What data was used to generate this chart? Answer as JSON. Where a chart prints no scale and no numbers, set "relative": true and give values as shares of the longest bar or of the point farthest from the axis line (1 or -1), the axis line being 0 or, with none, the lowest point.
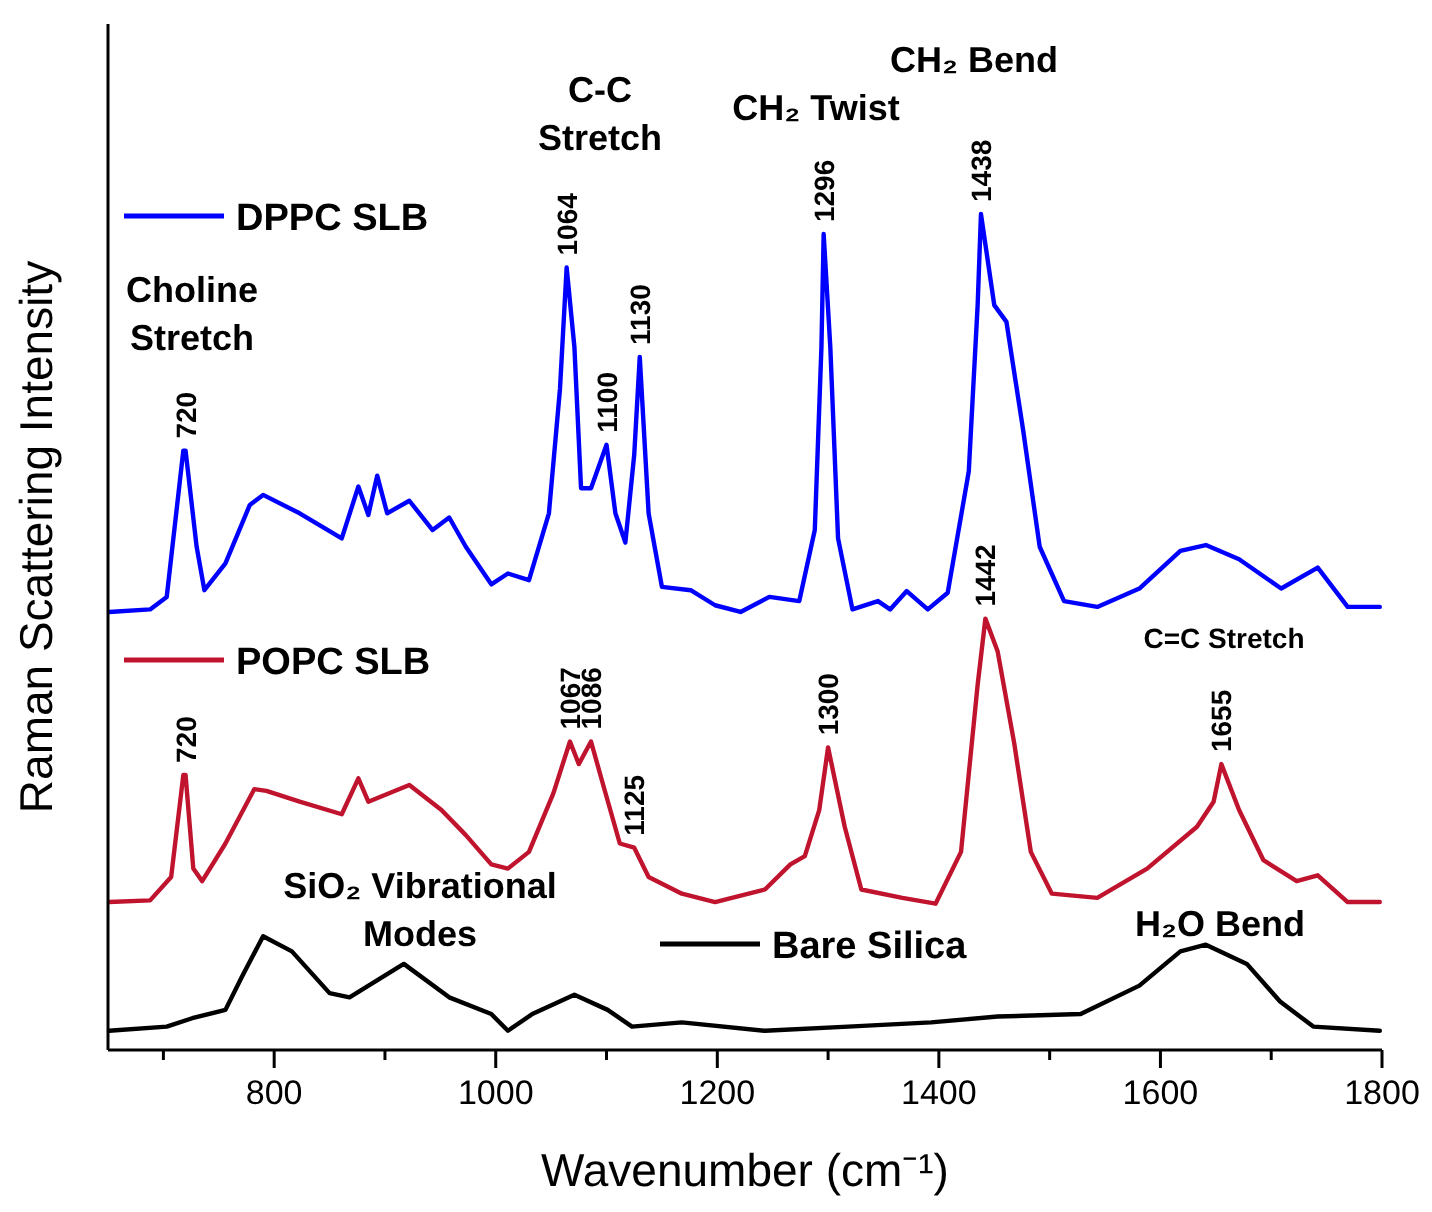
{
  "chart_data": {
    "type": "line",
    "relative": true,
    "xlabel": "Wavenumber (cm⁻¹)",
    "ylabel": "Raman Scattering Intensity",
    "xlim": [
      650,
      1800
    ],
    "xticks": [
      {
        "value": 700,
        "label": null
      },
      800,
      {
        "value": 900,
        "label": null
      },
      1000,
      {
        "value": 1100,
        "label": null
      },
      1200,
      {
        "value": 1300,
        "label": null
      },
      1400,
      {
        "value": 1500,
        "label": null
      },
      1600,
      {
        "value": 1700,
        "label": null
      },
      1800
    ],
    "legend": "left",
    "grid": false,
    "line_style": "solid",
    "marker": "none",
    "series": [
      {
        "name": "DPPC SLB",
        "color": "#0000ff",
        "x": [
          651,
          688,
          703,
          718,
          720,
          730,
          737,
          756,
          778,
          790,
          823,
          861,
          876,
          885,
          893,
          902,
          922,
          943,
          958,
          973,
          996,
          1011,
          1030,
          1048,
          1058,
          1064,
          1071,
          1077,
          1086,
          1100,
          1108,
          1117,
          1125,
          1130,
          1138,
          1150,
          1176,
          1198,
          1221,
          1247,
          1274,
          1288,
          1294,
          1296,
          1302,
          1309,
          1322,
          1345,
          1356,
          1371,
          1390,
          1408,
          1427,
          1435,
          1438,
          1450,
          1461,
          1476,
          1491,
          1513,
          1543,
          1581,
          1618,
          1641,
          1671,
          1709,
          1742,
          1769,
          1798
        ],
        "values": [
          0.524,
          0.527,
          0.542,
          0.717,
          0.717,
          0.602,
          0.55,
          0.582,
          0.652,
          0.664,
          0.642,
          0.612,
          0.674,
          0.64,
          0.687,
          0.642,
          0.657,
          0.622,
          0.637,
          0.602,
          0.557,
          0.57,
          0.562,
          0.642,
          0.791,
          0.936,
          0.841,
          0.672,
          0.672,
          0.724,
          0.642,
          0.607,
          0.712,
          0.829,
          0.642,
          0.554,
          0.55,
          0.532,
          0.524,
          0.542,
          0.537,
          0.622,
          0.841,
          0.976,
          0.841,
          0.612,
          0.527,
          0.537,
          0.527,
          0.549,
          0.527,
          0.547,
          0.692,
          0.891,
          1.0,
          0.891,
          0.871,
          0.742,
          0.602,
          0.537,
          0.53,
          0.552,
          0.597,
          0.604,
          0.587,
          0.552,
          0.577,
          0.53,
          0.53
        ]
      },
      {
        "name": "POPC SLB",
        "color": "#c0142e",
        "x": [
          651,
          688,
          707,
          718,
          720,
          727,
          735,
          756,
          782,
          793,
          823,
          861,
          876,
          885,
          922,
          951,
          973,
          996,
          1011,
          1030,
          1052,
          1067,
          1075,
          1086,
          1097,
          1112,
          1125,
          1138,
          1168,
          1198,
          1243,
          1266,
          1279,
          1292,
          1300,
          1315,
          1330,
          1367,
          1397,
          1420,
          1435,
          1442,
          1453,
          1468,
          1483,
          1502,
          1543,
          1588,
          1633,
          1648,
          1655,
          1671,
          1693,
          1723,
          1742,
          1769,
          1798
        ],
        "values": [
          0.177,
          0.179,
          0.207,
          0.329,
          0.329,
          0.217,
          0.202,
          0.247,
          0.312,
          0.31,
          0.297,
          0.282,
          0.325,
          0.297,
          0.317,
          0.287,
          0.257,
          0.222,
          0.217,
          0.237,
          0.307,
          0.369,
          0.342,
          0.369,
          0.317,
          0.247,
          0.242,
          0.207,
          0.187,
          0.177,
          0.192,
          0.222,
          0.232,
          0.287,
          0.362,
          0.267,
          0.192,
          0.182,
          0.175,
          0.237,
          0.437,
          0.516,
          0.477,
          0.367,
          0.237,
          0.187,
          0.182,
          0.217,
          0.267,
          0.297,
          0.342,
          0.287,
          0.227,
          0.202,
          0.209,
          0.177,
          0.177
        ]
      },
      {
        "name": "Bare Silica",
        "color": "#000000",
        "x": [
          651,
          703,
          726,
          756,
          771,
          790,
          816,
          850,
          868,
          917,
          958,
          996,
          1011,
          1033,
          1071,
          1101,
          1123,
          1168,
          1243,
          1318,
          1393,
          1453,
          1528,
          1581,
          1618,
          1641,
          1678,
          1708,
          1738,
          1798
        ],
        "values": [
          0.023,
          0.028,
          0.038,
          0.048,
          0.088,
          0.136,
          0.118,
          0.068,
          0.063,
          0.103,
          0.063,
          0.043,
          0.023,
          0.043,
          0.066,
          0.048,
          0.028,
          0.033,
          0.023,
          0.028,
          0.033,
          0.04,
          0.043,
          0.077,
          0.118,
          0.126,
          0.103,
          0.058,
          0.028,
          0.023
        ]
      }
    ],
    "annotations": [
      {
        "text": "720",
        "x": 720,
        "y": 0.717
      },
      {
        "text": "1064",
        "x": 1064,
        "y": 0.936
      },
      {
        "text": "1100",
        "x": 1100,
        "y": 0.724
      },
      {
        "text": "1130",
        "x": 1130,
        "y": 0.829
      },
      {
        "text": "1296",
        "x": 1296,
        "y": 0.976
      },
      {
        "text": "1438",
        "x": 1438,
        "y": 1.0
      },
      {
        "text": "720",
        "x": 720,
        "y": 0.329
      },
      {
        "text": "1067",
        "x": 1067,
        "y": 0.369
      },
      {
        "text": "1086",
        "x": 1086,
        "y": 0.369
      },
      {
        "text": "1125",
        "x": 1125,
        "y": 0.242
      },
      {
        "text": "1300",
        "x": 1300,
        "y": 0.362
      },
      {
        "text": "1442",
        "x": 1442,
        "y": 0.516
      },
      {
        "text": "1655",
        "x": 1655,
        "y": 0.342
      },
      "Choline\nStretch",
      "C-C\nStretch",
      "CH₂ Twist",
      "CH₂ Bend",
      "C=C Stretch",
      "SiO₂ Vibrational\nModes",
      "H₂O Bend"
    ]
  }
}
